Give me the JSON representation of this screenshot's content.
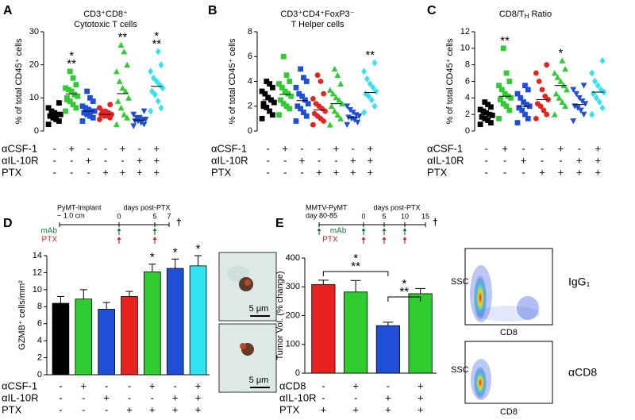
{
  "chart_data": [
    {
      "type": "dot",
      "panel": "A",
      "title": "CD3⁺CD8⁺",
      "subtitle": "Cytotoxic T cells",
      "ylabel": "% of total CD45⁺ cells",
      "ylim": [
        0,
        30
      ],
      "yticks": [
        0,
        10,
        20,
        30
      ],
      "series": [
        {
          "color": "#000000",
          "marker": "square",
          "values": [
            2,
            3,
            3.5,
            4,
            4.5,
            5,
            5,
            5.5,
            6,
            7,
            8.5,
            4.2
          ],
          "mean": 4.8
        },
        {
          "color": "#2ecc2e",
          "marker": "square",
          "values": [
            6,
            7,
            8,
            9,
            10,
            10.5,
            11,
            12,
            12.5,
            13,
            14,
            16,
            18,
            9.5
          ],
          "mean": 11.2,
          "annotation": [
            "*",
            "**"
          ]
        },
        {
          "color": "#1f4fd8",
          "marker": "square",
          "values": [
            3,
            4,
            4.5,
            5,
            5.5,
            6,
            6,
            6.5,
            7,
            7.5,
            9,
            10,
            12
          ],
          "mean": 6
        },
        {
          "color": "#e8231f",
          "marker": "circle",
          "values": [
            3.5,
            4,
            4.5,
            4.5,
            5,
            5,
            5.5,
            6,
            6,
            7,
            8
          ],
          "mean": 5
        },
        {
          "color": "#2ecc2e",
          "marker": "triangle",
          "values": [
            2,
            4,
            5,
            7,
            9,
            10,
            12,
            13,
            15,
            18,
            20,
            24,
            26
          ],
          "mean": 11.3,
          "annotation": [
            "**"
          ]
        },
        {
          "color": "#1f4fd8",
          "marker": "down",
          "values": [
            1.5,
            2,
            2.5,
            3,
            3,
            3.5,
            3.5,
            4,
            4,
            5,
            6
          ],
          "mean": 3.3
        },
        {
          "color": "#2fe3f2",
          "marker": "diamond",
          "values": [
            6,
            7,
            9,
            11,
            12,
            13,
            14,
            15,
            16,
            18,
            20,
            24
          ],
          "mean": 13.5,
          "annotation": [
            "*",
            "**"
          ]
        }
      ],
      "treatments": [
        {
          "name": "αCSF-1",
          "signs": [
            "-",
            "+",
            "-",
            "-",
            "+",
            "-",
            "+"
          ]
        },
        {
          "name": "αIL-10R",
          "signs": [
            "-",
            "-",
            "+",
            "-",
            "-",
            "+",
            "+"
          ]
        },
        {
          "name": "PTX",
          "signs": [
            "-",
            "-",
            "-",
            "+",
            "+",
            "+",
            "+"
          ]
        }
      ]
    },
    {
      "type": "dot",
      "panel": "B",
      "title": "CD3⁺CD4⁺FoxP3⁻",
      "subtitle": "T Helper cells",
      "ylabel": "% of total CD45⁺ cells",
      "ylim": [
        0,
        8
      ],
      "yticks": [
        0,
        2,
        4,
        6,
        8
      ],
      "series": [
        {
          "color": "#000000",
          "marker": "square",
          "values": [
            1,
            1.3,
            1.6,
            1.9,
            2,
            2.3,
            2.5,
            2.7,
            3,
            3.2,
            3.5,
            3.8,
            4,
            2.2
          ],
          "mean": 2.5
        },
        {
          "color": "#2ecc2e",
          "marker": "square",
          "values": [
            1.3,
            1.8,
            2,
            2.2,
            2.5,
            2.8,
            3,
            3.2,
            3.5,
            3.8,
            4,
            4.5,
            6
          ],
          "mean": 2.95
        },
        {
          "color": "#1f4fd8",
          "marker": "square",
          "values": [
            0.8,
            1.2,
            1.5,
            1.8,
            2,
            2.2,
            2.5,
            2.8,
            3,
            3.5,
            4,
            4.3,
            5
          ],
          "mean": 2.45
        },
        {
          "color": "#e8231f",
          "marker": "circle",
          "values": [
            0.5,
            0.8,
            1,
            1.2,
            1.4,
            1.6,
            1.8,
            2,
            2.2,
            2.6,
            3,
            4,
            4.5
          ],
          "mean": 1.7
        },
        {
          "color": "#2ecc2e",
          "marker": "triangle",
          "values": [
            0.5,
            1,
            1.3,
            1.6,
            2,
            2.2,
            2.5,
            2.7,
            3,
            3.3,
            3.8,
            4.5,
            5
          ],
          "mean": 2.2
        },
        {
          "color": "#1f4fd8",
          "marker": "down",
          "values": [
            0.5,
            0.7,
            0.9,
            1,
            1.1,
            1.2,
            1.3,
            1.5,
            1.7,
            2
          ],
          "mean": 1.1
        },
        {
          "color": "#2fe3f2",
          "marker": "diamond",
          "values": [
            1.5,
            2,
            2.5,
            2.8,
            3,
            3.2,
            3.5,
            3.8,
            4.2,
            4.8,
            5.5
          ],
          "mean": 3.1,
          "annotation": [
            "**"
          ]
        }
      ],
      "treatments": [
        {
          "name": "αCSF-1",
          "signs": [
            "-",
            "+",
            "-",
            "-",
            "+",
            "-",
            "+"
          ]
        },
        {
          "name": "αIL-10R",
          "signs": [
            "-",
            "-",
            "+",
            "-",
            "-",
            "+",
            "+"
          ]
        },
        {
          "name": "PTX",
          "signs": [
            "-",
            "-",
            "-",
            "+",
            "+",
            "+",
            "+"
          ]
        }
      ]
    },
    {
      "type": "dot",
      "panel": "C",
      "title": "CD8/T",
      "title_subscript": "H",
      "title_end": " Ratio",
      "ylabel": "% of total CD45⁺ cells",
      "ylim": [
        0,
        12
      ],
      "yticks": [
        0,
        2,
        4,
        6,
        8,
        10,
        12
      ],
      "series": [
        {
          "color": "#000000",
          "marker": "square",
          "values": [
            0.8,
            1,
            1.3,
            1.5,
            1.7,
            1.9,
            2,
            2.2,
            2.4,
            2.6,
            2.9,
            3.2,
            3.5
          ],
          "mean": 2
        },
        {
          "color": "#2ecc2e",
          "marker": "square",
          "values": [
            1.5,
            2.5,
            3,
            3.3,
            3.8,
            4,
            4.2,
            4.5,
            5,
            5.5,
            6,
            7,
            10
          ],
          "mean": 4.2,
          "annotation": [
            "**"
          ]
        },
        {
          "color": "#1f4fd8",
          "marker": "square",
          "values": [
            1,
            1.5,
            2,
            2.5,
            2.8,
            3,
            3.2,
            3.5,
            4,
            4.5,
            5,
            5.5
          ],
          "mean": 3
        },
        {
          "color": "#e8231f",
          "marker": "circle",
          "values": [
            1.5,
            2,
            2.5,
            3,
            3.3,
            3.8,
            4.2,
            5,
            6,
            7,
            8
          ],
          "mean": 3.8
        },
        {
          "color": "#2ecc2e",
          "marker": "triangle",
          "values": [
            2,
            3,
            3.5,
            4,
            4.5,
            5,
            5.5,
            6,
            6.5,
            7,
            7.5,
            8.5
          ],
          "mean": 5.5,
          "annotation": [
            "*"
          ]
        },
        {
          "color": "#1f4fd8",
          "marker": "down",
          "values": [
            1.2,
            2,
            2.5,
            2.8,
            3,
            3.3,
            3.6,
            4,
            4.5,
            5,
            5.5
          ],
          "mean": 3.2
        },
        {
          "color": "#2fe3f2",
          "marker": "diamond",
          "values": [
            2,
            2.8,
            3.5,
            4,
            4.5,
            4.7,
            5,
            5.5,
            6,
            7,
            8.5
          ],
          "mean": 4.7
        }
      ],
      "treatments": [
        {
          "name": "αCSF-1",
          "signs": [
            "-",
            "+",
            "-",
            "-",
            "+",
            "-",
            "+"
          ]
        },
        {
          "name": "αIL-10R",
          "signs": [
            "-",
            "-",
            "+",
            "-",
            "-",
            "+",
            "+"
          ]
        },
        {
          "name": "PTX",
          "signs": [
            "-",
            "-",
            "-",
            "+",
            "+",
            "+",
            "+"
          ]
        }
      ]
    },
    {
      "type": "bar",
      "panel": "D",
      "ylabel": "GZMB⁺ cells/mm²",
      "ylim": [
        0,
        14
      ],
      "yticks": [
        0,
        2,
        4,
        6,
        8,
        10,
        12,
        14
      ],
      "values": [
        8.4,
        8.9,
        7.7,
        9.2,
        12.1,
        12.5,
        12.8
      ],
      "errors": [
        0.8,
        1.1,
        0.8,
        0.6,
        0.9,
        1.1,
        1.2
      ],
      "colors": [
        "#000000",
        "#2ecc2e",
        "#1f4fd8",
        "#e8231f",
        "#2ecc2e",
        "#1f4fd8",
        "#2fe3f2"
      ],
      "annotations": [
        null,
        null,
        null,
        null,
        "*",
        "*",
        "*"
      ],
      "treatments": [
        {
          "name": "αCSF-1",
          "signs": [
            "-",
            "+",
            "-",
            "-",
            "+",
            "-",
            "+"
          ]
        },
        {
          "name": "αIL-10R",
          "signs": [
            "-",
            "-",
            "+",
            "-",
            "-",
            "+",
            "+"
          ]
        },
        {
          "name": "PTX",
          "signs": [
            "-",
            "-",
            "-",
            "+",
            "+",
            "+",
            "+"
          ]
        }
      ],
      "timeline": {
        "start": [
          "PyMT-Implant",
          "~ 1.0 cm"
        ],
        "title": "days post-PTX",
        "days": [
          0,
          5,
          7
        ],
        "mab": "mAb",
        "ptx": "PTX",
        "end": "†"
      },
      "scale_bar": [
        "5 μm",
        "5 μm"
      ]
    },
    {
      "type": "bar",
      "panel": "E",
      "ylabel": "Tumor Vol. (% change)",
      "ylim": [
        0,
        400
      ],
      "yticks": [
        0,
        100,
        200,
        300,
        400
      ],
      "values": [
        308,
        282,
        165,
        276
      ],
      "errors": [
        15,
        40,
        12,
        18
      ],
      "colors": [
        "#e8231f",
        "#2ecc2e",
        "#1f4fd8",
        "#2ecc2e"
      ],
      "bracket_labels": [
        [
          "*",
          "**"
        ],
        [
          "*",
          "**"
        ]
      ],
      "treatments": [
        {
          "name": "αCD8",
          "signs": [
            "-",
            "+",
            "-",
            "+"
          ]
        },
        {
          "name": "αIL-10R",
          "signs": [
            "-",
            "-",
            "+",
            "+"
          ]
        },
        {
          "name": "PTX",
          "signs": [
            "+",
            "+",
            "+",
            "+"
          ]
        }
      ],
      "timeline": {
        "start": [
          "MMTV-PyMT",
          "day 80-85"
        ],
        "title": "days post-PTX",
        "days": [
          0,
          5,
          10,
          15
        ],
        "mab": "mAb",
        "ptx": "PTX",
        "end": "†"
      },
      "flow": {
        "y_label": "SSC",
        "x_label": "CD8",
        "samples": [
          "IgG₁",
          "αCD8"
        ]
      }
    }
  ]
}
